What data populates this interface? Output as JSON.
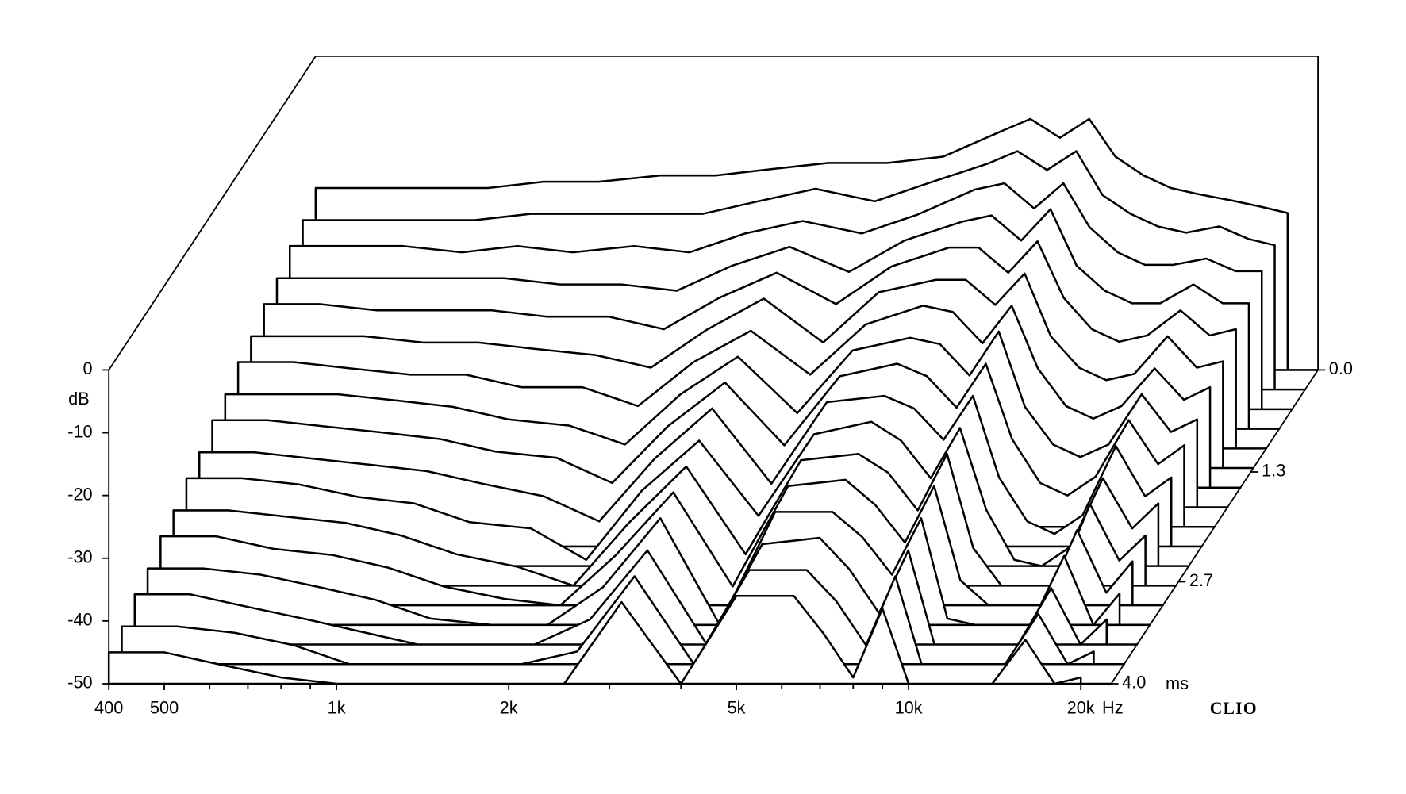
{
  "chart_data": {
    "type": "waterfall",
    "y_label": "dB",
    "x_unit": "Hz",
    "z_unit": "ms",
    "brand": "CLIO",
    "xlim": [
      400,
      22600
    ],
    "xticks": [
      400,
      500,
      {
        "value": 1000,
        "label": "1k"
      },
      {
        "value": 2000,
        "label": "2k"
      },
      {
        "value": 5000,
        "label": "5k"
      },
      {
        "value": 10000,
        "label": "10k"
      },
      {
        "value": 20000,
        "label": "20k"
      }
    ],
    "xminorticks": [
      600,
      700,
      800,
      900,
      3000,
      4000,
      6000,
      7000,
      8000,
      9000
    ],
    "ylim": [
      -50,
      0
    ],
    "yticks": [
      0,
      -10,
      -20,
      -30,
      -40,
      -50
    ],
    "zlim": [
      0,
      4
    ],
    "zticks": [
      {
        "value": 0,
        "label": "0.0"
      },
      1.3,
      2.7,
      {
        "value": 4,
        "label": "4.0"
      }
    ],
    "x": [
      400,
      500,
      630,
      800,
      1000,
      1250,
      1600,
      2000,
      2500,
      3150,
      4000,
      5000,
      6300,
      7100,
      8000,
      9000,
      10000,
      11200,
      12500,
      14000,
      16000,
      18000,
      20000
    ],
    "z": [
      0,
      0.25,
      0.5,
      0.75,
      1,
      1.25,
      1.5,
      1.75,
      2,
      2.25,
      2.5,
      2.75,
      3,
      3.25,
      3.5,
      3.75,
      4
    ],
    "series": [
      {
        "values": [
          -21,
          -21,
          -21,
          -21,
          -20,
          -20,
          -19,
          -19,
          -18,
          -17,
          -17,
          -16,
          -12,
          -10,
          -13,
          -10,
          -16,
          -19,
          -21,
          -22,
          -23,
          -24,
          -25
        ]
      },
      {
        "values": [
          -23,
          -23,
          -23,
          -23,
          -22,
          -22,
          -22,
          -22,
          -20,
          -18,
          -20,
          -17,
          -14,
          -12,
          -15,
          -12,
          -19,
          -22,
          -24,
          -25,
          -24,
          -26,
          -27
        ]
      },
      {
        "values": [
          -24,
          -24,
          -24,
          -25,
          -24,
          -25,
          -24,
          -25,
          -22,
          -20,
          -22,
          -19,
          -15,
          -14,
          -18,
          -14,
          -21,
          -25,
          -27,
          -27,
          -26,
          -28,
          -28
        ]
      },
      {
        "values": [
          -26,
          -26,
          -26,
          -26,
          -26,
          -27,
          -27,
          -28,
          -24,
          -21,
          -25,
          -20,
          -17,
          -16,
          -20,
          -15,
          -24,
          -28,
          -30,
          -30,
          -27,
          -30,
          -30
        ]
      },
      {
        "values": [
          -27,
          -27,
          -28,
          -28,
          -28,
          -29,
          -29,
          -31,
          -26,
          -22,
          -27,
          -21,
          -18,
          -18,
          -22,
          -17,
          -26,
          -31,
          -33,
          -32,
          -28,
          -32,
          -31
        ]
      },
      {
        "values": [
          -29,
          -29,
          -29,
          -30,
          -30,
          -31,
          -32,
          -34,
          -28,
          -23,
          -30,
          -22,
          -20,
          -20,
          -24,
          -19,
          -29,
          -34,
          -36,
          -35,
          -29,
          -34,
          -33
        ]
      },
      {
        "values": [
          -30,
          -30,
          -31,
          -32,
          -32,
          -34,
          -34,
          -37,
          -30,
          -25,
          -32,
          -24,
          -21,
          -22,
          -27,
          -21,
          -31,
          -37,
          -39,
          -37,
          -31,
          -36,
          -34
        ]
      },
      {
        "values": [
          -32,
          -32,
          -32,
          -33,
          -34,
          -36,
          -37,
          -40,
          -32,
          -26,
          -35,
          -25,
          -23,
          -24,
          -29,
          -22,
          -34,
          -40,
          -42,
          -40,
          -32,
          -38,
          -36
        ]
      },
      {
        "values": [
          -33,
          -33,
          -34,
          -35,
          -36,
          -38,
          -39,
          -43,
          -34,
          -27,
          -37,
          -26,
          -24,
          -26,
          -31,
          -24,
          -36,
          -43,
          -45,
          -42,
          -33,
          -40,
          -37
        ]
      },
      {
        "values": [
          -35,
          -35,
          -36,
          -37,
          -38,
          -40,
          -42,
          -46,
          -36,
          -28,
          -40,
          -27,
          -26,
          -28,
          -33,
          -26,
          -39,
          -46,
          -48,
          -45,
          -34,
          -42,
          -39
        ]
      },
      {
        "values": [
          -36,
          -36,
          -37,
          -39,
          -40,
          -43,
          -44,
          -49,
          -38,
          -30,
          -42,
          -29,
          -27,
          -30,
          -36,
          -28,
          -41,
          -49,
          -50,
          -47,
          -36,
          -44,
          -40
        ]
      },
      {
        "values": [
          -38,
          -38,
          -39,
          -40,
          -42,
          -45,
          -47,
          -50,
          -40,
          -31,
          -45,
          -30,
          -29,
          -32,
          -38,
          -29,
          -44,
          -50,
          -50,
          -50,
          -37,
          -46,
          -42
        ]
      },
      {
        "values": [
          -39,
          -39,
          -41,
          -42,
          -44,
          -47,
          -49,
          -50,
          -42,
          -32,
          -47,
          -31,
          -30,
          -34,
          -40,
          -31,
          -46,
          -50,
          -50,
          -50,
          -38,
          -48,
          -43
        ]
      },
      {
        "values": [
          -41,
          -41,
          -42,
          -44,
          -46,
          -49,
          -50,
          -50,
          -44,
          -33,
          -50,
          -32,
          -32,
          -36,
          -42,
          -33,
          -49,
          -50,
          -50,
          -50,
          -39,
          -50,
          -45
        ]
      },
      {
        "values": [
          -42,
          -42,
          -44,
          -46,
          -48,
          -50,
          -50,
          -50,
          -46,
          -35,
          -50,
          -34,
          -33,
          -38,
          -45,
          -35,
          -50,
          -50,
          -50,
          -50,
          -41,
          -50,
          -46
        ]
      },
      {
        "values": [
          -44,
          -44,
          -45,
          -47,
          -50,
          -50,
          -50,
          -50,
          -48,
          -36,
          -50,
          -35,
          -35,
          -40,
          -47,
          -36,
          -50,
          -50,
          -50,
          -50,
          -42,
          -50,
          -48
        ]
      },
      {
        "values": [
          -45,
          -45,
          -47,
          -49,
          -50,
          -50,
          -50,
          -50,
          -50,
          -37,
          -50,
          -36,
          -36,
          -42,
          -49,
          -38,
          -50,
          -50,
          -50,
          -50,
          -43,
          -50,
          -49
        ]
      }
    ]
  }
}
